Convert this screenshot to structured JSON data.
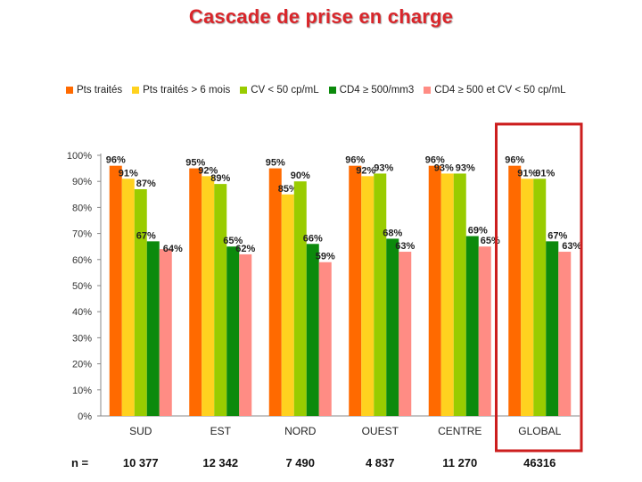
{
  "chart_data": {
    "type": "bar",
    "title": "Cascade de prise en charge",
    "xlabel": "",
    "ylabel": "",
    "ylim": [
      0,
      100
    ],
    "y_ticks": [
      "0%",
      "10%",
      "20%",
      "30%",
      "40%",
      "50%",
      "60%",
      "70%",
      "80%",
      "90%",
      "100%"
    ],
    "categories": [
      "SUD",
      "EST",
      "NORD",
      "OUEST",
      "CENTRE",
      "GLOBAL"
    ],
    "series": [
      {
        "name": "Pts traités",
        "color": "#ff6a00",
        "values": [
          96,
          95,
          95,
          96,
          96,
          96
        ],
        "labels": [
          "96%",
          "95%",
          "95%",
          "96%",
          "96%",
          "96%"
        ]
      },
      {
        "name": "Pts traités > 6 mois",
        "color": "#ffd21f",
        "values": [
          91,
          92,
          85,
          92,
          93,
          91
        ],
        "labels": [
          "91%",
          "92%",
          "85%",
          "92%",
          "93%",
          "91%"
        ]
      },
      {
        "name": "CV < 50 cp/mL",
        "color": "#99cc00",
        "values": [
          87,
          89,
          90,
          93,
          93,
          91
        ],
        "labels": [
          "87%",
          "89%",
          "90%",
          "93%",
          "93%",
          "91%"
        ]
      },
      {
        "name": "CD4 ≥ 500/mm3",
        "color": "#0c8a0c",
        "values": [
          67,
          65,
          66,
          68,
          69,
          67
        ],
        "labels": [
          "67%",
          "65%",
          "66%",
          "68%",
          "69%",
          "67%"
        ]
      },
      {
        "name": "CD4 ≥ 500 et CV < 50 cp/mL",
        "color": "#ff8c84",
        "values": [
          64,
          62,
          59,
          63,
          65,
          63
        ],
        "labels": [
          "64%",
          "62%",
          "59%",
          "63%",
          "65%",
          "63%"
        ]
      }
    ],
    "n_label": "n =",
    "n_values": [
      "10 377",
      "12 342",
      "7 490",
      "4 837",
      "11 270",
      "46316"
    ],
    "highlight": {
      "category": "GLOBAL",
      "color": "#cc1e1e"
    },
    "grid": false,
    "legend_position": "top"
  }
}
